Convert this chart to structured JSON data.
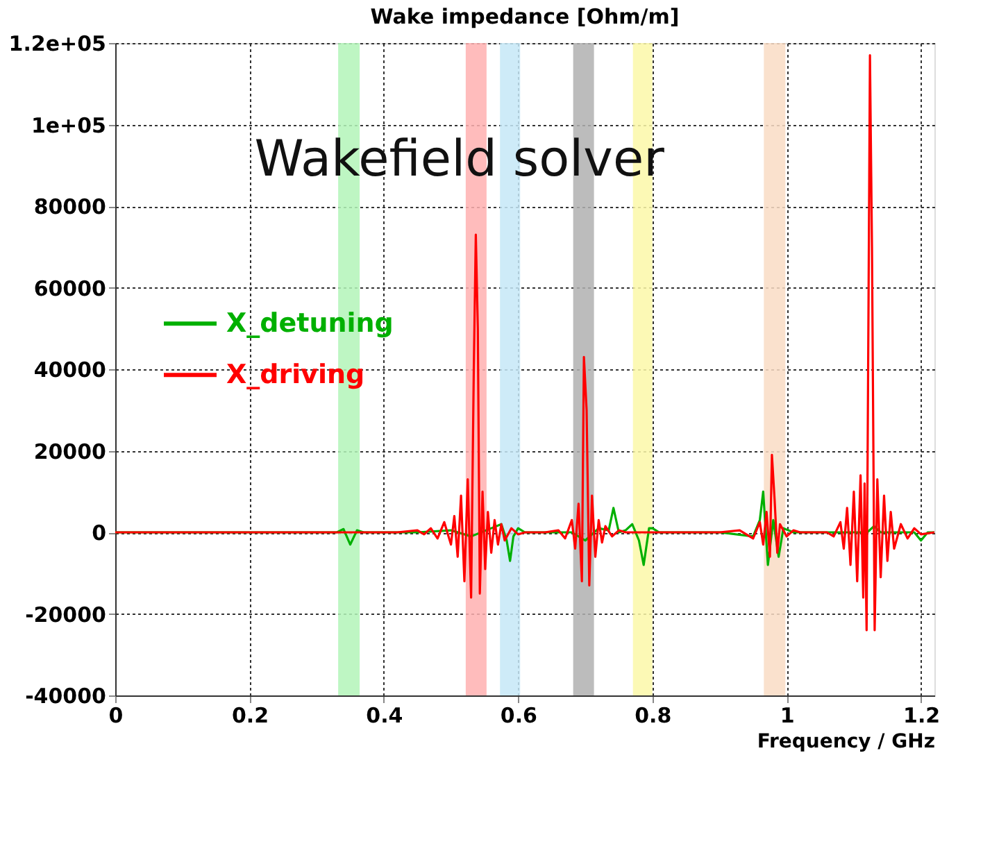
{
  "chart_data": {
    "type": "line",
    "title": "Wake impedance [Ohm/m]",
    "xlabel": "Frequency / GHz",
    "annotations": [
      "Wakefield solver"
    ],
    "xlim": [
      0,
      1.22
    ],
    "xticks": [
      0,
      0.2,
      0.4,
      0.6,
      0.8,
      1,
      1.2
    ],
    "ylim": [
      -40000,
      120000
    ],
    "yticks": [
      -40000,
      -20000,
      0,
      20000,
      40000,
      60000,
      80000,
      {
        "value": 100000,
        "label": "1e+05"
      },
      {
        "value": 120000,
        "label": "1.2e+05"
      }
    ],
    "grid": true,
    "legend": "left",
    "marker": "none",
    "line_style": "solid",
    "bands": [
      {
        "axis": "x",
        "from": 0.332,
        "to": 0.364,
        "color": "#b3f5b8"
      },
      {
        "axis": "x",
        "from": 0.522,
        "to": 0.553,
        "color": "#ffb0b0"
      },
      {
        "axis": "x",
        "from": 0.573,
        "to": 0.603,
        "color": "#c5e8f7"
      },
      {
        "axis": "x",
        "from": 0.682,
        "to": 0.713,
        "color": "#b0b0b0"
      },
      {
        "axis": "x",
        "from": 0.771,
        "to": 0.8,
        "color": "#fbf8a8"
      },
      {
        "axis": "x",
        "from": 0.966,
        "to": 0.998,
        "color": "#f9dcc4"
      }
    ],
    "series": [
      {
        "name": "X_detuning",
        "color": "#00b000",
        "x": [
          0,
          0.28,
          0.33,
          0.34,
          0.35,
          0.36,
          0.37,
          0.45,
          0.5,
          0.53,
          0.56,
          0.575,
          0.583,
          0.588,
          0.593,
          0.6,
          0.61,
          0.68,
          0.7,
          0.72,
          0.735,
          0.742,
          0.75,
          0.76,
          0.77,
          0.78,
          0.787,
          0.795,
          0.8,
          0.81,
          0.9,
          0.95,
          0.96,
          0.965,
          0.972,
          0.98,
          0.988,
          0.995,
          1.01,
          1.12,
          1.13,
          1.14,
          1.19,
          1.2,
          1.21,
          1.22
        ],
        "values": [
          0,
          0,
          0,
          800,
          -3000,
          500,
          0,
          0,
          500,
          -1000,
          1000,
          2000,
          -2000,
          -7000,
          -1000,
          1000,
          0,
          0,
          -2000,
          1000,
          500,
          6000,
          0,
          500,
          2000,
          -2000,
          -8000,
          1000,
          1000,
          0,
          0,
          -1000,
          3000,
          10000,
          -8000,
          3000,
          -6000,
          1000,
          0,
          0,
          1500,
          0,
          0,
          -2000,
          0,
          0
        ]
      },
      {
        "name": "X_driving",
        "color": "#ff0000",
        "x": [
          0,
          0.42,
          0.45,
          0.46,
          0.47,
          0.48,
          0.49,
          0.5,
          0.505,
          0.51,
          0.515,
          0.52,
          0.525,
          0.53,
          0.534,
          0.537,
          0.54,
          0.543,
          0.547,
          0.551,
          0.555,
          0.56,
          0.565,
          0.57,
          0.575,
          0.58,
          0.59,
          0.6,
          0.61,
          0.64,
          0.66,
          0.67,
          0.68,
          0.685,
          0.69,
          0.695,
          0.698,
          0.702,
          0.706,
          0.71,
          0.715,
          0.72,
          0.725,
          0.73,
          0.74,
          0.75,
          0.76,
          0.9,
          0.93,
          0.95,
          0.96,
          0.965,
          0.97,
          0.975,
          0.978,
          0.982,
          0.986,
          0.99,
          1.0,
          1.01,
          1.02,
          1.06,
          1.07,
          1.08,
          1.085,
          1.09,
          1.095,
          1.1,
          1.105,
          1.11,
          1.114,
          1.116,
          1.119,
          1.122,
          1.124,
          1.127,
          1.131,
          1.135,
          1.14,
          1.145,
          1.15,
          1.155,
          1.16,
          1.17,
          1.18,
          1.19,
          1.2,
          1.22
        ],
        "values": [
          0,
          0,
          500,
          -500,
          1000,
          -1500,
          2500,
          -3000,
          4000,
          -6000,
          9000,
          -12000,
          13000,
          -16000,
          40000,
          73000,
          50000,
          -15000,
          10000,
          -9000,
          5000,
          -5000,
          3000,
          -3000,
          2000,
          -2000,
          1000,
          -500,
          0,
          0,
          500,
          -1500,
          3000,
          -4000,
          7000,
          -12000,
          43000,
          30000,
          -13000,
          9000,
          -6000,
          3000,
          -2500,
          1500,
          -1000,
          500,
          0,
          0,
          500,
          -1500,
          2500,
          -3000,
          5000,
          -6000,
          19000,
          8000,
          -5000,
          2000,
          -1000,
          500,
          0,
          0,
          -1000,
          2500,
          -4000,
          6000,
          -8000,
          10000,
          -12000,
          14000,
          -16000,
          12000,
          -24000,
          60000,
          117000,
          70000,
          -24000,
          13000,
          -11000,
          9000,
          -7000,
          5000,
          -4000,
          2000,
          -1500,
          1000,
          -500,
          0
        ]
      }
    ]
  }
}
